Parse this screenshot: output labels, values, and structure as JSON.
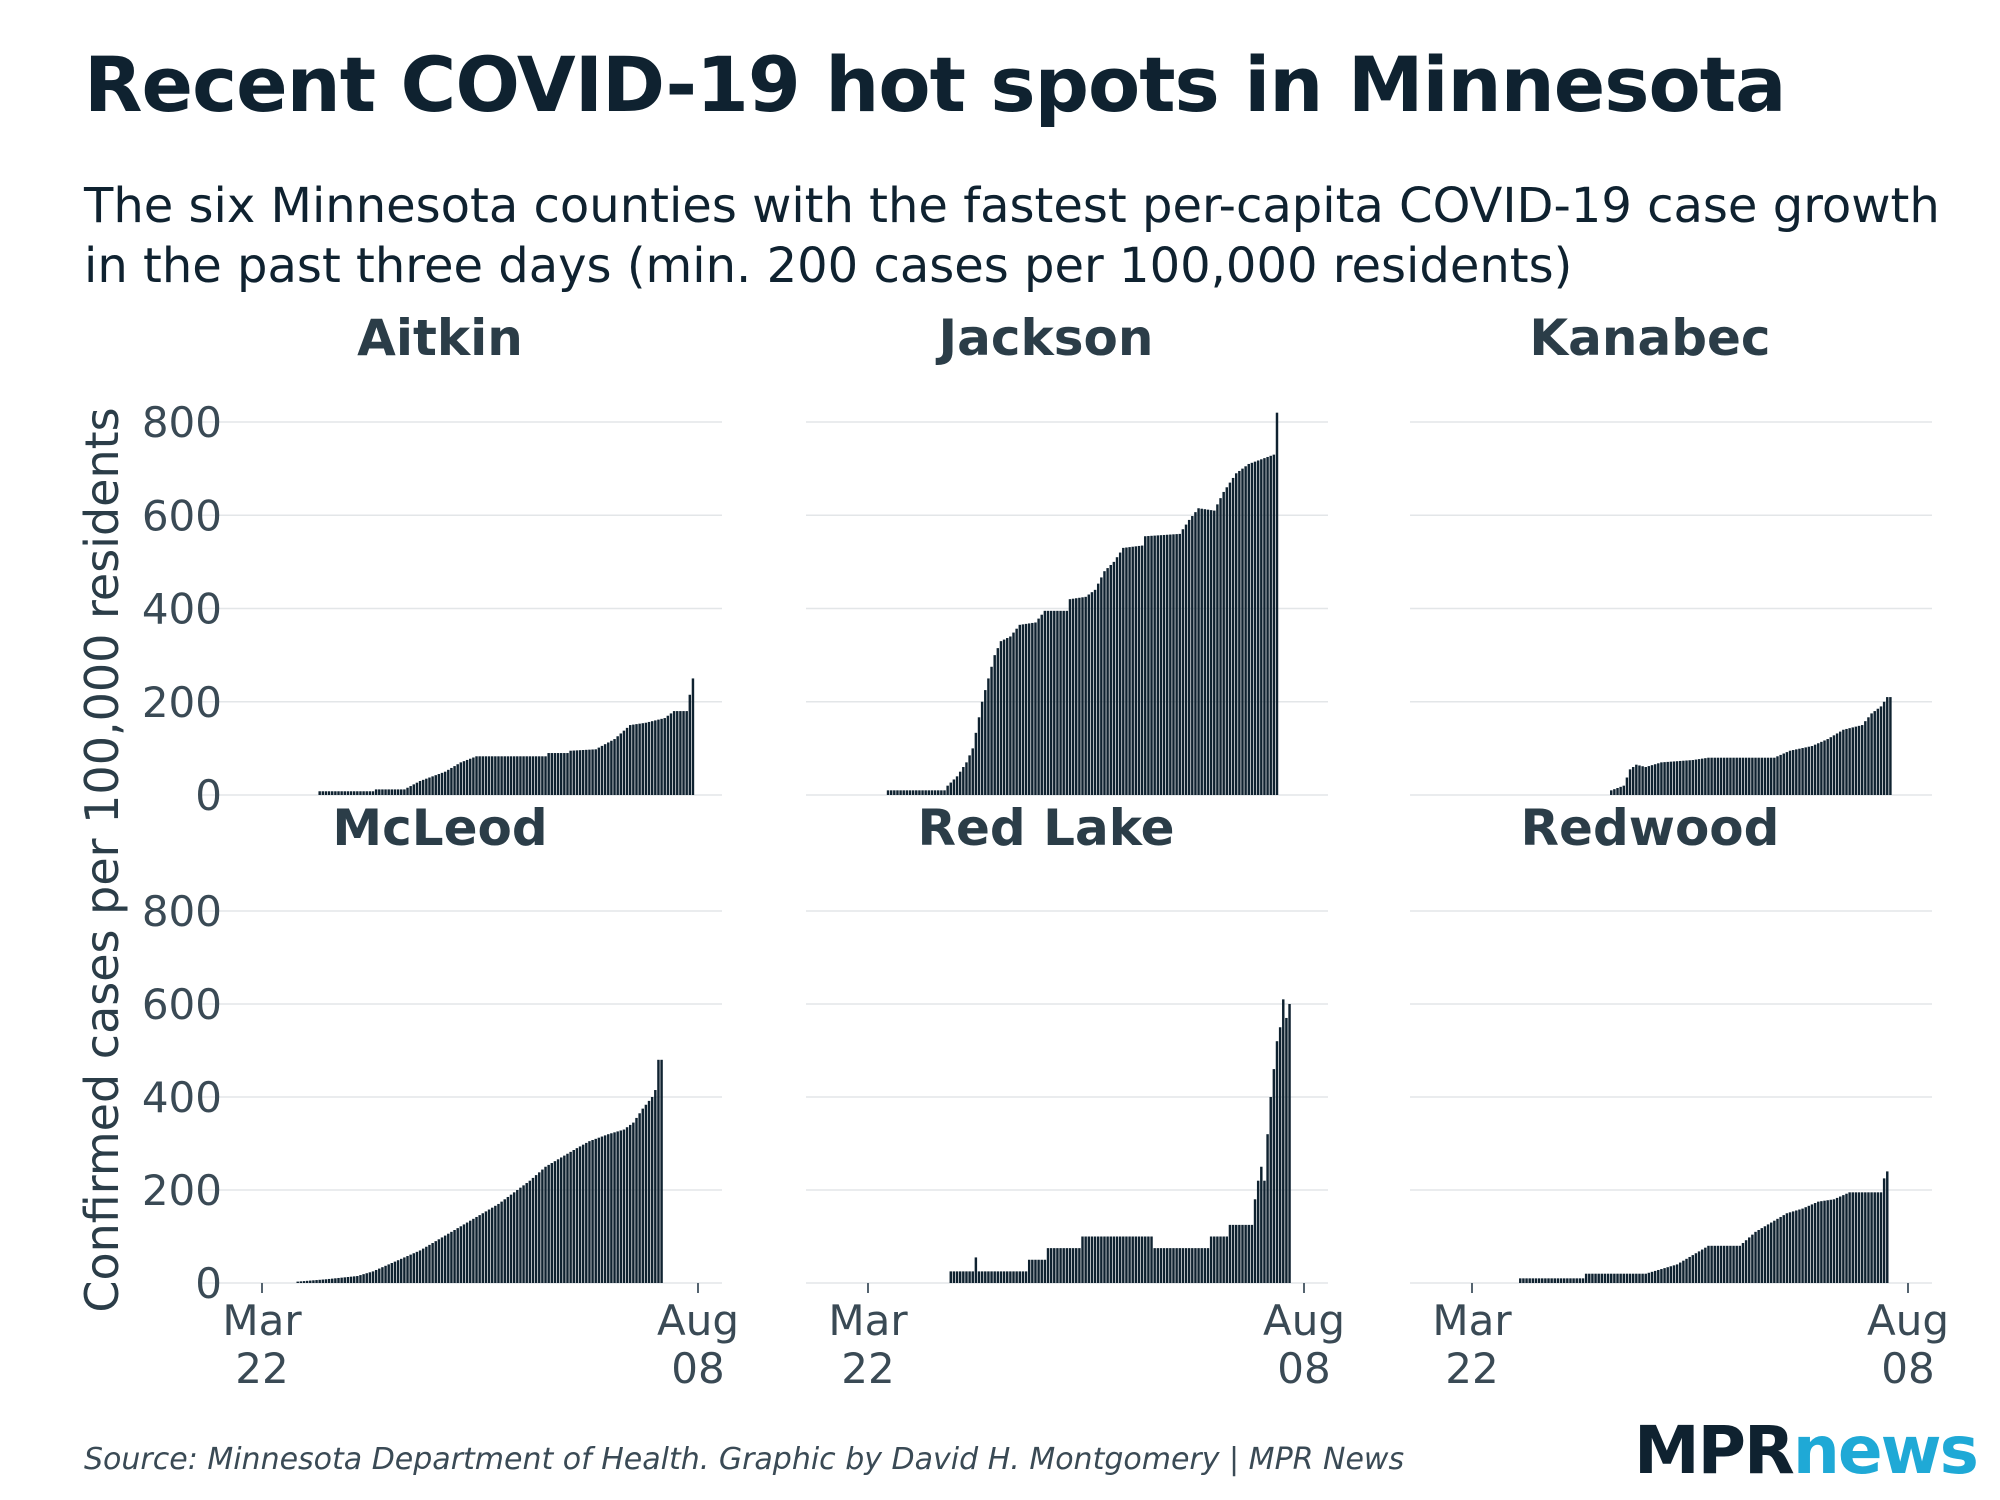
{
  "header": {
    "title": "Recent COVID-19 hot spots in Minnesota",
    "subtitle": "The six Minnesota counties with the fastest per-capita COVID-19 case growth in the past three days (min. 200 cases per 100,000 residents)"
  },
  "footer": {
    "source": "Source: Minnesota Department of Health. Graphic by David H. Montgomery | MPR News",
    "logo_mpr": "MPR",
    "logo_news": "news"
  },
  "colors": {
    "bar": "#0f2230",
    "grid": "#e3e6e8",
    "text": "#0f2230",
    "axis_text": "#3a4a55",
    "accent": "#1fa9d6"
  },
  "chart_data": {
    "type": "bar",
    "layout": "small-multiples",
    "ylabel": "Confirmed cases per 100,000 residents",
    "ylim": [
      0,
      800
    ],
    "yticks": [
      0,
      200,
      400,
      600,
      800
    ],
    "xaxis": {
      "start": "2020-03-22",
      "end": "2020-08-08"
    },
    "xtick_labels": [
      {
        "month": "Mar",
        "day": "22"
      },
      {
        "month": "Aug",
        "day": "08"
      }
    ],
    "panels": [
      {
        "name": "Aitkin",
        "keyframes": [
          [
            0,
            0
          ],
          [
            17,
            0
          ],
          [
            18,
            8
          ],
          [
            35,
            8
          ],
          [
            36,
            12
          ],
          [
            45,
            12
          ],
          [
            50,
            30
          ],
          [
            58,
            50
          ],
          [
            63,
            70
          ],
          [
            68,
            83
          ],
          [
            90,
            83
          ],
          [
            91,
            90
          ],
          [
            97,
            90
          ],
          [
            98,
            95
          ],
          [
            106,
            98
          ],
          [
            112,
            120
          ],
          [
            117,
            150
          ],
          [
            122,
            155
          ],
          [
            128,
            165
          ],
          [
            131,
            180
          ],
          [
            135,
            180
          ],
          [
            136,
            215
          ],
          [
            137,
            250
          ]
        ],
        "note": "approximate cumulative values read from chart, daily bars from 2020-03-22 to 2020-08-08"
      },
      {
        "name": "Jackson",
        "keyframes": [
          [
            0,
            0
          ],
          [
            5,
            0
          ],
          [
            6,
            10
          ],
          [
            24,
            10
          ],
          [
            25,
            20
          ],
          [
            28,
            40
          ],
          [
            31,
            70
          ],
          [
            33,
            100
          ],
          [
            36,
            200
          ],
          [
            38,
            250
          ],
          [
            40,
            300
          ],
          [
            42,
            330
          ],
          [
            45,
            340
          ],
          [
            48,
            365
          ],
          [
            53,
            370
          ],
          [
            56,
            395
          ],
          [
            63,
            395
          ],
          [
            64,
            420
          ],
          [
            69,
            425
          ],
          [
            72,
            440
          ],
          [
            75,
            480
          ],
          [
            78,
            500
          ],
          [
            81,
            530
          ],
          [
            87,
            535
          ],
          [
            88,
            555
          ],
          [
            99,
            560
          ],
          [
            102,
            590
          ],
          [
            105,
            615
          ],
          [
            110,
            610
          ],
          [
            113,
            650
          ],
          [
            117,
            690
          ],
          [
            121,
            710
          ],
          [
            125,
            720
          ],
          [
            129,
            730
          ],
          [
            130,
            820
          ]
        ]
      },
      {
        "name": "Kanabec",
        "keyframes": [
          [
            0,
            0
          ],
          [
            43,
            0
          ],
          [
            44,
            10
          ],
          [
            48,
            20
          ],
          [
            50,
            55
          ],
          [
            52,
            65
          ],
          [
            55,
            60
          ],
          [
            60,
            70
          ],
          [
            70,
            75
          ],
          [
            75,
            80
          ],
          [
            96,
            80
          ],
          [
            101,
            95
          ],
          [
            108,
            105
          ],
          [
            113,
            120
          ],
          [
            118,
            140
          ],
          [
            124,
            150
          ],
          [
            127,
            175
          ],
          [
            130,
            190
          ],
          [
            132,
            210
          ],
          [
            133,
            210
          ]
        ]
      },
      {
        "name": "McLeod",
        "keyframes": [
          [
            0,
            0
          ],
          [
            10,
            0
          ],
          [
            11,
            3
          ],
          [
            20,
            8
          ],
          [
            30,
            15
          ],
          [
            35,
            25
          ],
          [
            40,
            40
          ],
          [
            45,
            55
          ],
          [
            50,
            70
          ],
          [
            55,
            90
          ],
          [
            60,
            110
          ],
          [
            65,
            130
          ],
          [
            70,
            150
          ],
          [
            75,
            170
          ],
          [
            80,
            195
          ],
          [
            85,
            220
          ],
          [
            90,
            250
          ],
          [
            95,
            270
          ],
          [
            100,
            290
          ],
          [
            104,
            305
          ],
          [
            110,
            320
          ],
          [
            115,
            330
          ],
          [
            118,
            345
          ],
          [
            121,
            375
          ],
          [
            124,
            400
          ],
          [
            125,
            415
          ],
          [
            126,
            480
          ],
          [
            127,
            480
          ]
        ]
      },
      {
        "name": "Red Lake",
        "keyframes": [
          [
            0,
            0
          ],
          [
            25,
            0
          ],
          [
            26,
            25
          ],
          [
            33,
            25
          ],
          [
            34,
            55
          ],
          [
            35,
            25
          ],
          [
            50,
            25
          ],
          [
            51,
            50
          ],
          [
            56,
            50
          ],
          [
            57,
            75
          ],
          [
            67,
            75
          ],
          [
            68,
            100
          ],
          [
            90,
            100
          ],
          [
            91,
            75
          ],
          [
            108,
            75
          ],
          [
            109,
            100
          ],
          [
            114,
            100
          ],
          [
            115,
            125
          ],
          [
            122,
            125
          ],
          [
            123,
            180
          ],
          [
            124,
            220
          ],
          [
            125,
            250
          ],
          [
            126,
            220
          ],
          [
            127,
            320
          ],
          [
            128,
            400
          ],
          [
            129,
            460
          ],
          [
            130,
            520
          ],
          [
            131,
            550
          ],
          [
            132,
            610
          ],
          [
            133,
            570
          ],
          [
            134,
            600
          ]
        ]
      },
      {
        "name": "Redwood",
        "keyframes": [
          [
            0,
            0
          ],
          [
            14,
            0
          ],
          [
            15,
            10
          ],
          [
            35,
            10
          ],
          [
            36,
            20
          ],
          [
            55,
            20
          ],
          [
            60,
            30
          ],
          [
            65,
            40
          ],
          [
            70,
            60
          ],
          [
            75,
            80
          ],
          [
            85,
            80
          ],
          [
            90,
            110
          ],
          [
            95,
            130
          ],
          [
            100,
            150
          ],
          [
            105,
            160
          ],
          [
            110,
            175
          ],
          [
            115,
            180
          ],
          [
            120,
            195
          ],
          [
            130,
            195
          ],
          [
            131,
            225
          ],
          [
            132,
            240
          ]
        ]
      }
    ]
  }
}
